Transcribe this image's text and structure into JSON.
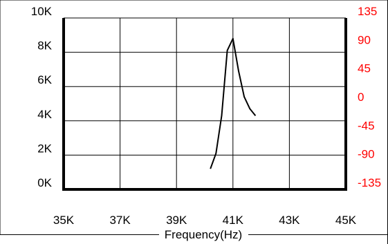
{
  "chart_data": {
    "type": "line",
    "title": "",
    "xlabel": "Frequency(Hz)",
    "ylabel": "",
    "y2label": "",
    "xlim": [
      35000,
      45000
    ],
    "ylim": [
      0,
      10000
    ],
    "y2lim": [
      -135,
      135
    ],
    "x_ticks": [
      {
        "value": 35000,
        "label": "35K"
      },
      {
        "value": 37000,
        "label": "37K"
      },
      {
        "value": 39000,
        "label": "39K"
      },
      {
        "value": 41000,
        "label": "41K"
      },
      {
        "value": 43000,
        "label": "43K"
      },
      {
        "value": 45000,
        "label": "45K"
      }
    ],
    "y_ticks": [
      {
        "value": 0,
        "label": "0K"
      },
      {
        "value": 2000,
        "label": "2K"
      },
      {
        "value": 4000,
        "label": "4K"
      },
      {
        "value": 6000,
        "label": "6K"
      },
      {
        "value": 8000,
        "label": "8K"
      },
      {
        "value": 10000,
        "label": "10K"
      }
    ],
    "y2_ticks": [
      {
        "value": -135,
        "label": "-135"
      },
      {
        "value": -90,
        "label": "-90"
      },
      {
        "value": -45,
        "label": "-45"
      },
      {
        "value": 0,
        "label": "0"
      },
      {
        "value": 45,
        "label": "45"
      },
      {
        "value": 90,
        "label": "90"
      },
      {
        "value": 135,
        "label": "135"
      }
    ],
    "grid": true,
    "colors": {
      "series": "#000000",
      "right_axis": "#ff0000",
      "grid": "#000000",
      "axis": "#000000"
    },
    "series": [
      {
        "axis": "left",
        "x": [
          40200,
          40400,
          40600,
          40800,
          41000,
          41200,
          41400,
          41600,
          41800
        ],
        "y": [
          1200,
          2100,
          4300,
          8100,
          8800,
          6900,
          5400,
          4700,
          4300
        ]
      }
    ]
  }
}
